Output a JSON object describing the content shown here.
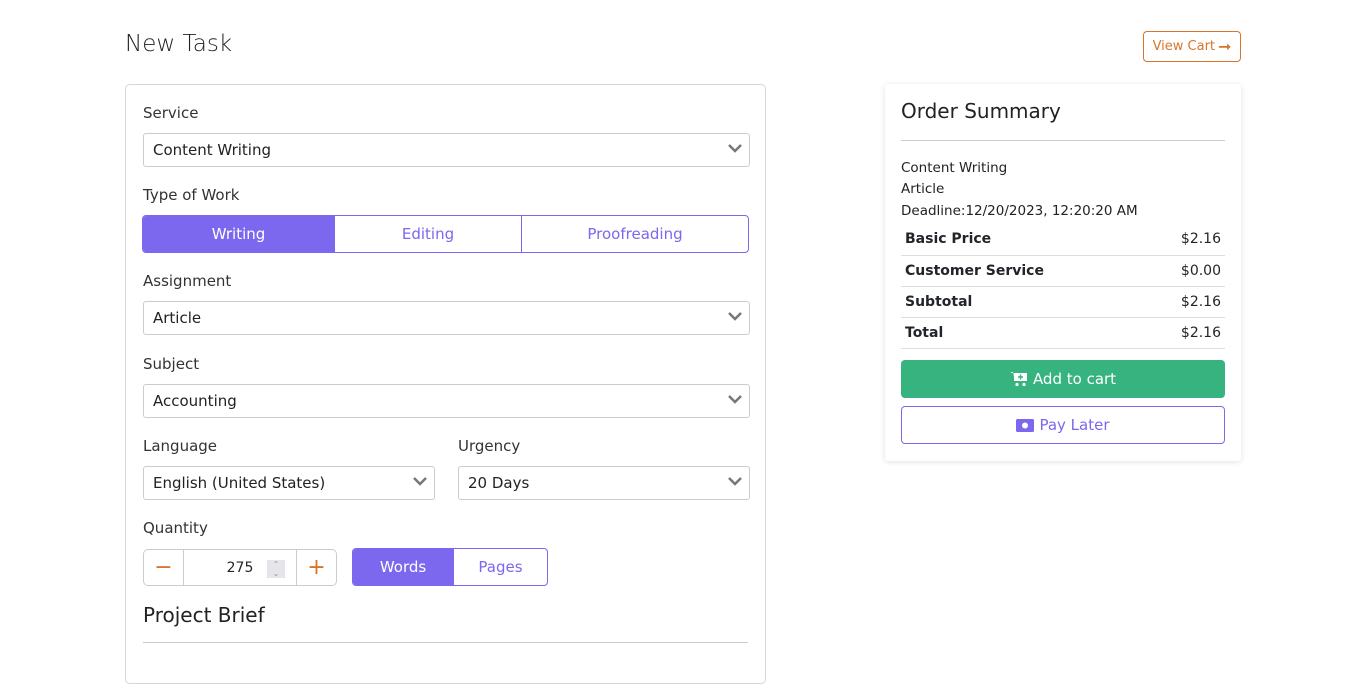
{
  "page": {
    "title": "New Task",
    "view_cart": "View Cart"
  },
  "form": {
    "service_label": "Service",
    "service_value": "Content Writing",
    "type_label": "Type of Work",
    "types": [
      "Writing",
      "Editing",
      "Proofreading"
    ],
    "type_selected": "Writing",
    "assignment_label": "Assignment",
    "assignment_value": "Article",
    "subject_label": "Subject",
    "subject_value": "Accounting",
    "language_label": "Language",
    "language_value": "English (United States)",
    "urgency_label": "Urgency",
    "urgency_value": "20 Days",
    "quantity_label": "Quantity",
    "quantity_value": "275",
    "units": [
      "Words",
      "Pages"
    ],
    "unit_selected": "Words",
    "brief_title": "Project Brief"
  },
  "summary": {
    "title": "Order Summary",
    "service": "Content Writing",
    "assignment": "Article",
    "deadline": "Deadline:12/20/2023, 12:20:20 AM",
    "rows": [
      {
        "label": "Basic Price",
        "value": "$2.16"
      },
      {
        "label": "Customer Service",
        "value": "$0.00"
      },
      {
        "label": "Subtotal",
        "value": "$2.16"
      },
      {
        "label": "Total",
        "value": "$2.16"
      }
    ],
    "add_to_cart": "Add to cart",
    "pay_later": "Pay Later"
  },
  "colors": {
    "accent": "#7b68ee",
    "cta": "#36b37e",
    "orange": "#d9742a"
  }
}
